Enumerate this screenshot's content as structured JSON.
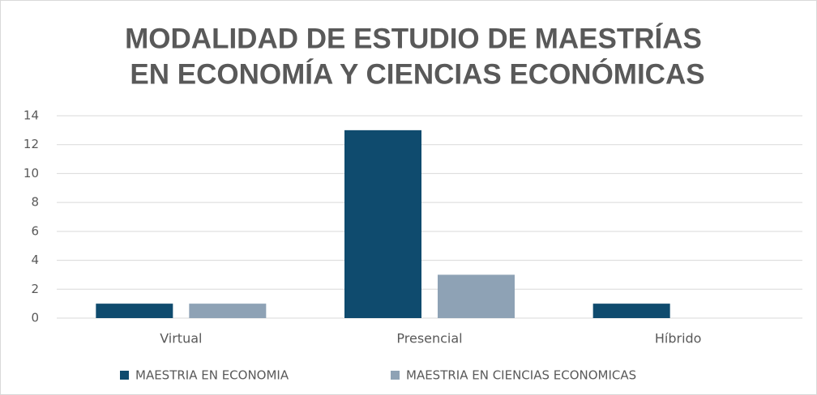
{
  "chart_data": {
    "type": "bar",
    "title": [
      "MODALIDAD DE ESTUDIO DE MAESTRÍAS",
      "EN ECONOMÍA Y CIENCIAS ECONÓMICAS"
    ],
    "categories": [
      "Virtual",
      "Presencial",
      "Híbrido"
    ],
    "series": [
      {
        "name": "MAESTRIA EN ECONOMIA",
        "color": "#0f4b6e",
        "values": [
          1,
          13,
          1
        ]
      },
      {
        "name": "MAESTRIA EN CIENCIAS ECONOMICAS",
        "color": "#8ea2b5",
        "values": [
          1,
          3,
          0
        ]
      }
    ],
    "ylim": [
      0,
      14
    ],
    "yticks": [
      0,
      2,
      4,
      6,
      8,
      10,
      12,
      14
    ],
    "grid": true,
    "legend": "bottom"
  }
}
